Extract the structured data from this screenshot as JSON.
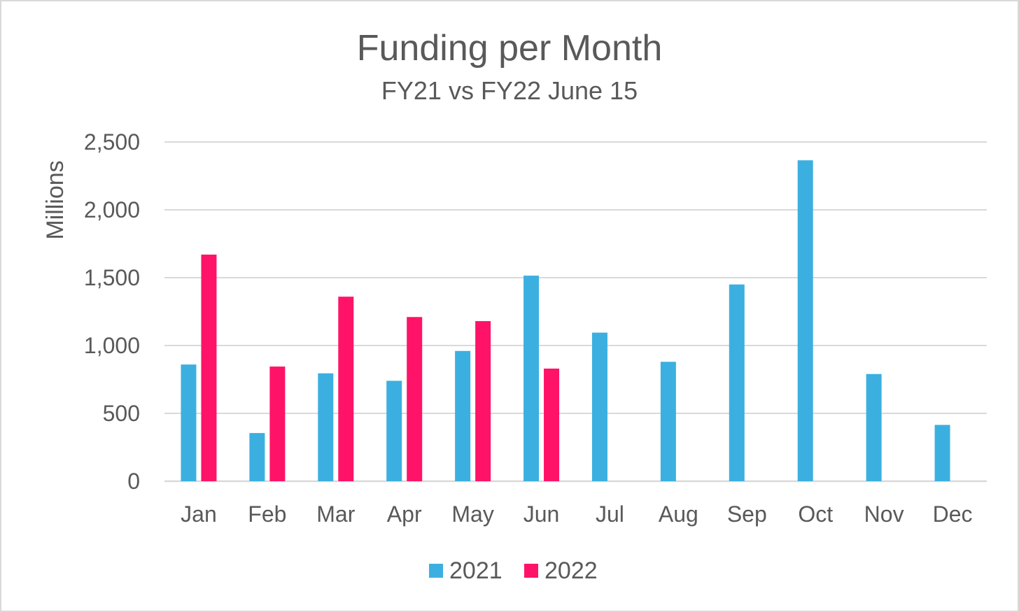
{
  "chart_data": {
    "type": "bar",
    "title": "Funding per Month",
    "subtitle": "FY21 vs FY22 June 15",
    "xlabel": "",
    "ylabel": "Millions",
    "categories": [
      "Jan",
      "Feb",
      "Mar",
      "Apr",
      "May",
      "Jun",
      "Jul",
      "Aug",
      "Sep",
      "Oct",
      "Nov",
      "Dec"
    ],
    "series": [
      {
        "name": "2021",
        "color": "#3BB0E0",
        "values": [
          860,
          355,
          795,
          740,
          960,
          1515,
          1095,
          880,
          1450,
          2365,
          790,
          415
        ]
      },
      {
        "name": "2022",
        "color": "#FF1368",
        "values": [
          1670,
          845,
          1360,
          1210,
          1180,
          830,
          null,
          null,
          null,
          null,
          null,
          null
        ]
      }
    ],
    "ylim": [
      0,
      2500
    ],
    "yticks": [
      0,
      500,
      1000,
      1500,
      2000,
      2500
    ],
    "ytick_labels": [
      "0",
      "500",
      "1,000",
      "1,500",
      "2,000",
      "2,500"
    ],
    "grid": true,
    "legend_position": "bottom"
  }
}
